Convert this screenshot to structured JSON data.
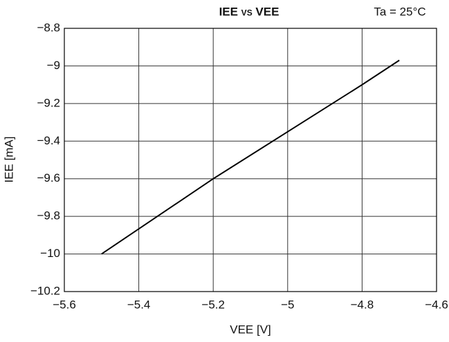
{
  "chart_data": {
    "type": "line",
    "title": "IEE vs VEE",
    "annotation": "Ta = 25°C",
    "xlabel": "VEE [V]",
    "ylabel": "IEE [mA]",
    "x": [
      -5.5,
      -5.2,
      -5.0,
      -4.8,
      -4.7
    ],
    "series": [
      {
        "name": "IEE",
        "color": "#000000",
        "values": [
          -10.0,
          -9.6,
          -9.35,
          -9.1,
          -8.97
        ]
      }
    ],
    "xlim": [
      -5.6,
      -4.6
    ],
    "xticks": [
      {
        "value": -5.6,
        "label": "−5.6"
      },
      {
        "value": -5.4,
        "label": "−5.4"
      },
      {
        "value": -5.2,
        "label": "−5.2"
      },
      {
        "value": -5,
        "label": "−5"
      },
      {
        "value": -4.8,
        "label": "−4.8"
      },
      {
        "value": -4.6,
        "label": "−4.6"
      }
    ],
    "ylim": [
      -10.2,
      -8.8
    ],
    "yticks": [
      {
        "value": -10.2,
        "label": "−10.2"
      },
      {
        "value": -10,
        "label": "−10"
      },
      {
        "value": -9.8,
        "label": "−9.8"
      },
      {
        "value": -9.6,
        "label": "−9.6"
      },
      {
        "value": -9.4,
        "label": "−9.4"
      },
      {
        "value": -9.2,
        "label": "−9.2"
      },
      {
        "value": -9,
        "label": "−9"
      },
      {
        "value": -8.8,
        "label": "−8.8"
      }
    ],
    "grid": true
  }
}
